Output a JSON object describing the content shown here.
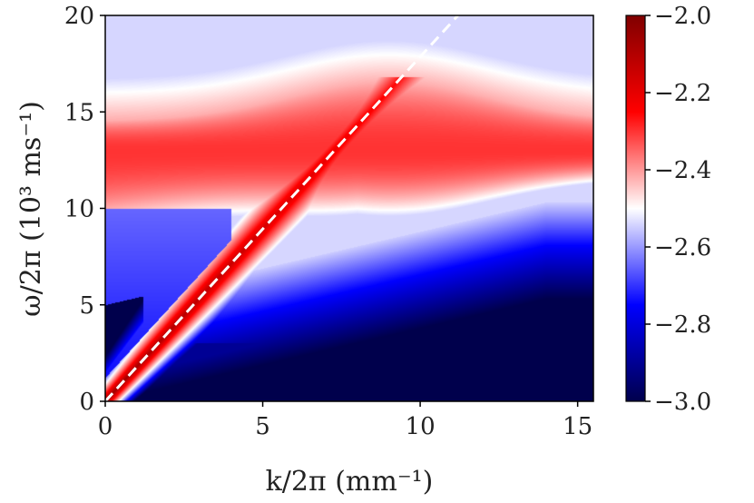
{
  "chart_data": {
    "type": "heatmap",
    "title": "",
    "xlabel": "k/2π (mm⁻¹)",
    "ylabel": "ω/2π (10³ ms⁻¹)",
    "xlim": [
      0,
      15.5
    ],
    "ylim": [
      0,
      20
    ],
    "x_ticks": [
      0,
      5,
      10,
      15
    ],
    "y_ticks": [
      0,
      5,
      10,
      15,
      20
    ],
    "x_tick_labels": [
      "0",
      "5",
      "10",
      "15"
    ],
    "y_tick_labels": [
      "0",
      "5",
      "10",
      "15",
      "20"
    ],
    "colorbar": {
      "range": [
        -3.0,
        -2.0
      ],
      "colormap": "seismic",
      "ticks": [
        -3.0,
        -2.8,
        -2.6,
        -2.4,
        -2.2,
        -2.0
      ],
      "tick_labels": [
        "−3.0",
        "−2.8",
        "−2.6",
        "−2.4",
        "−2.2",
        "−2.0"
      ],
      "colors": {
        "low": "#00004c",
        "mid": "#ffffff",
        "high": "#800000"
      }
    },
    "dispersion_line": {
      "style": "dashed",
      "color": "#ffffff",
      "points": [
        [
          0,
          0
        ],
        [
          11.2,
          20
        ]
      ]
    },
    "features": {
      "upper_band_center_omega": 13,
      "upper_band_edge_omega_start": 14.5,
      "upper_band_edge_omega_peak": 16.5,
      "lower_branch_omega_at_k_max": 10.3,
      "branch_merge_k": 4,
      "grid": false
    }
  }
}
